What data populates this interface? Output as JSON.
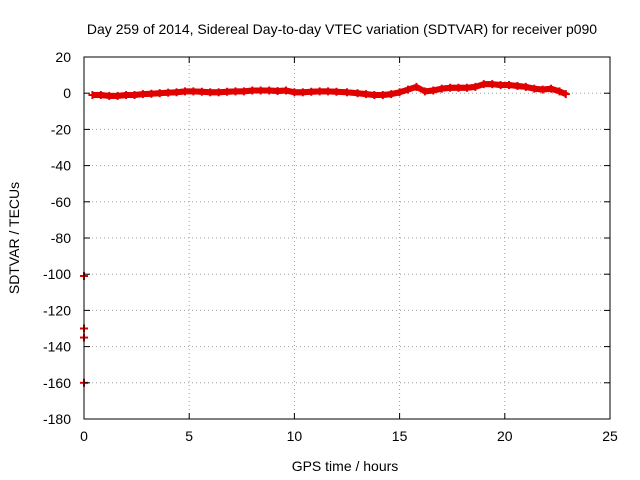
{
  "chart_data": {
    "type": "scatter",
    "title": "Day 259 of 2014, Sidereal Day-to-day VTEC variation (SDTVAR) for receiver p090",
    "xlabel": "GPS time / hours",
    "ylabel": "SDTVAR / TECUs",
    "xlim": [
      0,
      25
    ],
    "ylim": [
      -180,
      20
    ],
    "xticks": [
      0,
      5,
      10,
      15,
      20,
      25
    ],
    "yticks": [
      -180,
      -160,
      -140,
      -120,
      -100,
      -80,
      -60,
      -40,
      -20,
      0,
      20
    ],
    "grid": true,
    "marker": "plus",
    "color": "#e00000",
    "series": [
      {
        "name": "SDTVAR",
        "points": [
          [
            0.0,
            -101
          ],
          [
            0.0,
            -130
          ],
          [
            0.0,
            -135
          ],
          [
            0.0,
            -160
          ],
          [
            0.4,
            -1
          ],
          [
            0.8,
            -1
          ],
          [
            1.2,
            -1.5
          ],
          [
            1.6,
            -1.5
          ],
          [
            2.0,
            -1
          ],
          [
            2.4,
            -1
          ],
          [
            2.8,
            -0.5
          ],
          [
            3.2,
            -0.3
          ],
          [
            3.6,
            0
          ],
          [
            4.0,
            0.3
          ],
          [
            4.4,
            0.5
          ],
          [
            4.8,
            1
          ],
          [
            5.2,
            1
          ],
          [
            5.6,
            0.8
          ],
          [
            6.0,
            0.5
          ],
          [
            6.4,
            0.5
          ],
          [
            6.8,
            0.8
          ],
          [
            7.2,
            1
          ],
          [
            7.6,
            1
          ],
          [
            8.0,
            1.5
          ],
          [
            8.4,
            1.5
          ],
          [
            8.8,
            1.5
          ],
          [
            9.2,
            1.2
          ],
          [
            9.6,
            1.5
          ],
          [
            10.0,
            0.5
          ],
          [
            10.4,
            0.5
          ],
          [
            10.8,
            0.8
          ],
          [
            11.2,
            1
          ],
          [
            11.6,
            1
          ],
          [
            12.0,
            0.8
          ],
          [
            12.5,
            0.5
          ],
          [
            13.0,
            0
          ],
          [
            13.4,
            -0.5
          ],
          [
            13.8,
            -1
          ],
          [
            14.2,
            -1
          ],
          [
            14.6,
            -0.5
          ],
          [
            15.0,
            0.5
          ],
          [
            15.4,
            2
          ],
          [
            15.8,
            3.5
          ],
          [
            16.2,
            1
          ],
          [
            16.6,
            1.5
          ],
          [
            17.0,
            2.5
          ],
          [
            17.4,
            3
          ],
          [
            17.8,
            3
          ],
          [
            18.2,
            3
          ],
          [
            18.6,
            3.5
          ],
          [
            19.0,
            5
          ],
          [
            19.4,
            5
          ],
          [
            19.8,
            4.5
          ],
          [
            20.2,
            4.5
          ],
          [
            20.6,
            4
          ],
          [
            21.0,
            3.5
          ],
          [
            21.4,
            2.5
          ],
          [
            21.8,
            2
          ],
          [
            22.2,
            2.5
          ],
          [
            22.6,
            1
          ],
          [
            22.9,
            -0.5
          ]
        ]
      }
    ]
  }
}
